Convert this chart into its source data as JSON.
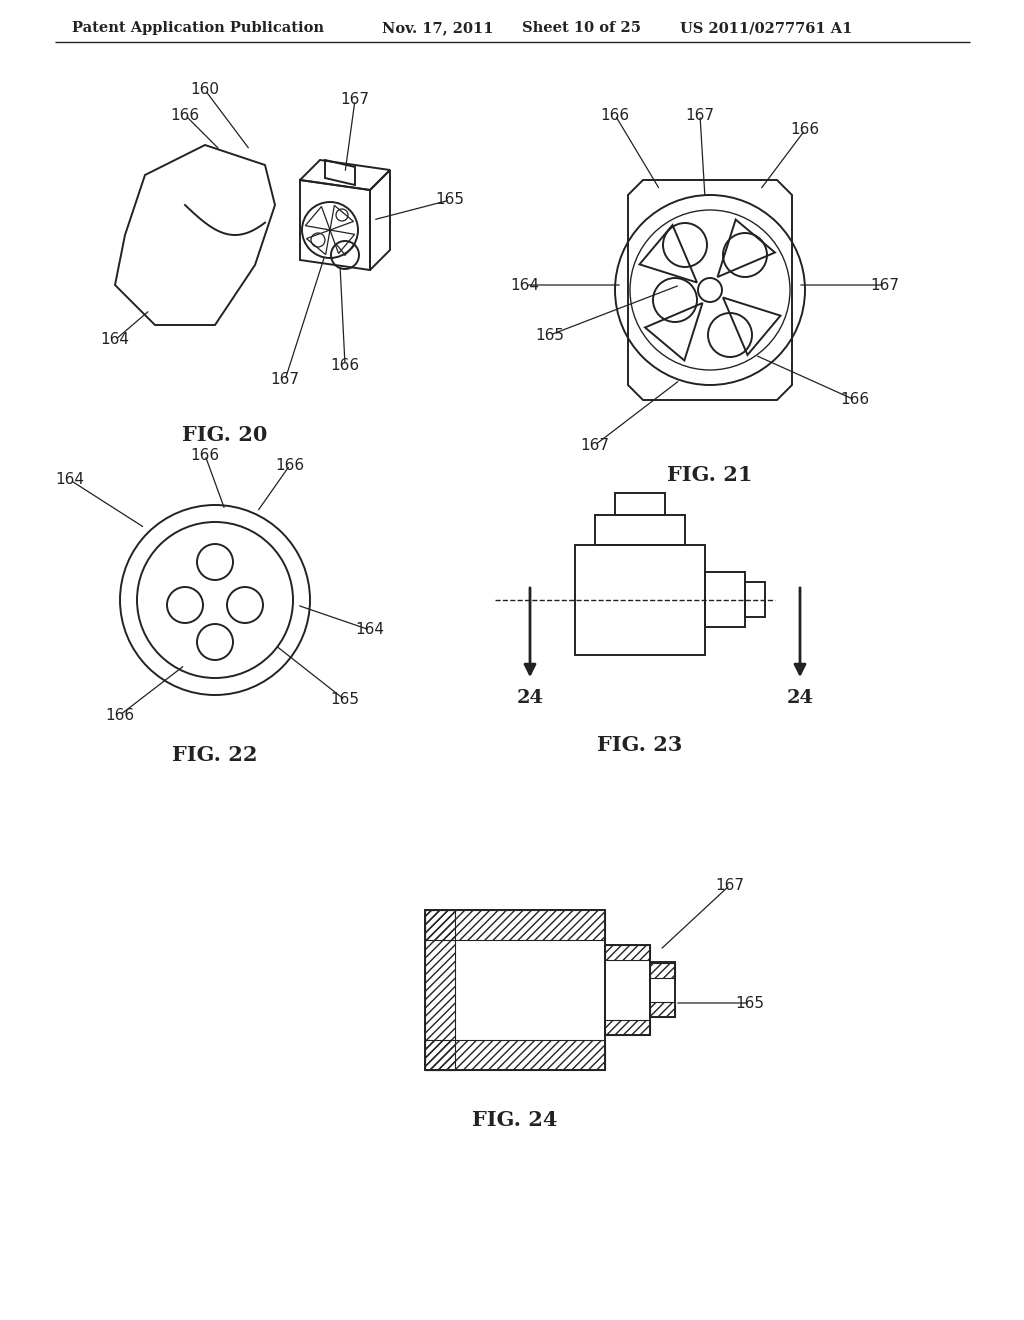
{
  "bg_color": "#ffffff",
  "line_color": "#222222",
  "header_text": "Patent Application Publication",
  "header_date": "Nov. 17, 2011",
  "header_sheet": "Sheet 10 of 25",
  "header_patent": "US 2011/0277761 A1",
  "fig20_label": "FIG. 20",
  "fig21_label": "FIG. 21",
  "fig22_label": "FIG. 22",
  "fig23_label": "FIG. 23",
  "fig24_label": "FIG. 24"
}
